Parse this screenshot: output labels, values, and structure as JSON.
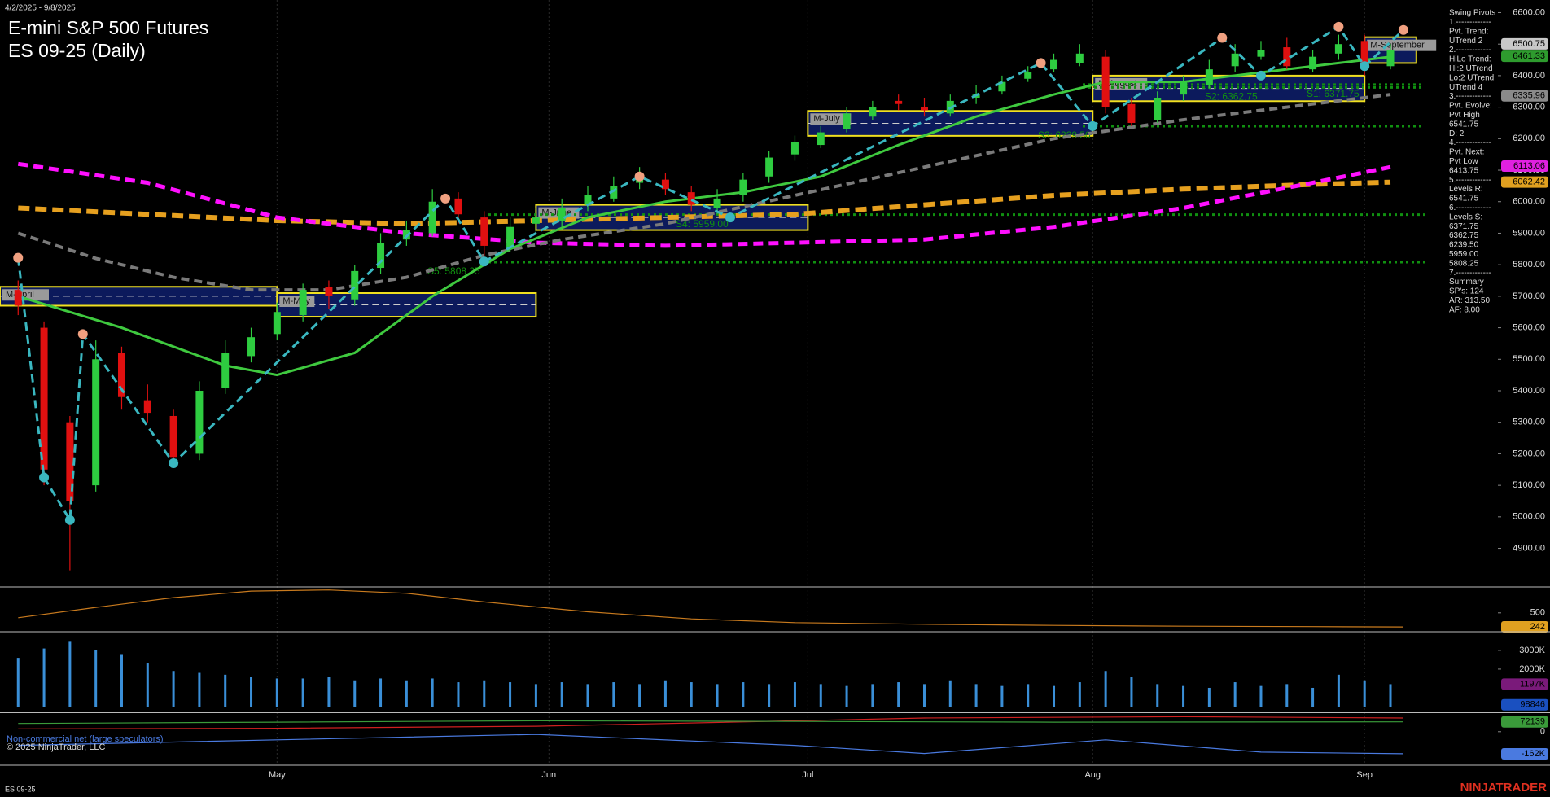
{
  "header": {
    "date_range": "4/2/2025 - 9/8/2025",
    "title": "E-mini S&P 500 Futures",
    "subtitle": "ES 09-25 (Daily)",
    "footer_symbol": "ES 09-25",
    "copyright": "© 2025 NinjaTrader, LLC",
    "brand": "NINJATRADER"
  },
  "sidebar": {
    "lines": [
      "Swing Pivots",
      "1.-------------",
      "Pvt. Trend:",
      "UTrend 2",
      "2.-------------",
      "HiLo Trend:",
      "Hi:2 UTrend",
      "Lo:2 UTrend",
      "UTrend 4",
      "3.-------------",
      "Pvt. Evolve:",
      "Pvt High",
      "6541.75",
      "D: 2",
      "4.-------------",
      "Pvt. Next:",
      "Pvt Low",
      "6413.75",
      "5.-------------",
      "Levels R:",
      "6541.75",
      "6.-------------",
      "Levels S:",
      "6371.75",
      "6362.75",
      "6239.50",
      "5959.00",
      "5808.25",
      "7.-------------",
      "Summary",
      "SP's: 124",
      "AR: 313.50",
      "AF: 8.00"
    ]
  },
  "chart_data": [
    {
      "type": "candlestick",
      "x": [
        0,
        2,
        4,
        6,
        8,
        10,
        12,
        14,
        16,
        18,
        20,
        22,
        24,
        26,
        28,
        30,
        32,
        34,
        36,
        38,
        40,
        42,
        44,
        46,
        48,
        50,
        52,
        54,
        56,
        58,
        60,
        62,
        64,
        66,
        68,
        70,
        72,
        74,
        76,
        78,
        80,
        82,
        84,
        86,
        88,
        90,
        92,
        94,
        96,
        98,
        100,
        102,
        104,
        106
      ],
      "open": [
        5720,
        5600,
        5300,
        5100,
        5520,
        5370,
        5320,
        5200,
        5410,
        5510,
        5580,
        5640,
        5730,
        5690,
        5790,
        5880,
        5900,
        6010,
        5950,
        5850,
        5930,
        5940,
        5990,
        6010,
        6060,
        6070,
        6030,
        5980,
        6020,
        6080,
        6150,
        6180,
        6230,
        6270,
        6320,
        6300,
        6280,
        6330,
        6350,
        6390,
        6420,
        6440,
        6460,
        6310,
        6260,
        6340,
        6370,
        6430,
        6460,
        6490,
        6420,
        6470,
        6510,
        6430
      ],
      "high": [
        5750,
        5620,
        5320,
        5560,
        5540,
        5420,
        5340,
        5430,
        5560,
        5600,
        5680,
        5740,
        5750,
        5800,
        5900,
        5940,
        6040,
        6030,
        5970,
        5950,
        5980,
        6010,
        6050,
        6080,
        6110,
        6090,
        6050,
        6040,
        6090,
        6160,
        6210,
        6240,
        6300,
        6320,
        6340,
        6330,
        6340,
        6370,
        6400,
        6430,
        6470,
        6500,
        6480,
        6330,
        6350,
        6400,
        6450,
        6500,
        6510,
        6520,
        6480,
        6530,
        6530,
        6500
      ],
      "low": [
        5640,
        5100,
        4830,
        5080,
        5340,
        5300,
        5160,
        5180,
        5390,
        5490,
        5560,
        5620,
        5660,
        5670,
        5770,
        5860,
        5890,
        5930,
        5810,
        5840,
        5900,
        5920,
        5970,
        6000,
        6040,
        6020,
        5970,
        5960,
        6000,
        6060,
        6130,
        6170,
        6220,
        6260,
        6290,
        6270,
        6270,
        6310,
        6340,
        6380,
        6410,
        6430,
        6280,
        6240,
        6250,
        6320,
        6360,
        6410,
        6450,
        6420,
        6410,
        6450,
        6400,
        6420
      ],
      "close": [
        5670,
        5150,
        5050,
        5500,
        5380,
        5330,
        5190,
        5400,
        5520,
        5570,
        5650,
        5720,
        5700,
        5780,
        5870,
        5910,
        6000,
        5960,
        5860,
        5920,
        5950,
        5980,
        6020,
        6050,
        6080,
        6040,
        5990,
        6010,
        6070,
        6140,
        6190,
        6220,
        6280,
        6300,
        6310,
        6290,
        6320,
        6340,
        6380,
        6410,
        6450,
        6470,
        6300,
        6250,
        6330,
        6380,
        6420,
        6470,
        6480,
        6430,
        6460,
        6500,
        6420,
        6480
      ],
      "up_color": "#2ecc40",
      "down_color": "#e01010",
      "xlim": [
        -1.4,
        114.3
      ],
      "xticks": [
        {
          "value": 20,
          "label": "May"
        },
        {
          "value": 41,
          "label": "Jun"
        },
        {
          "value": 61,
          "label": "Jul"
        },
        {
          "value": 83,
          "label": "Aug"
        },
        {
          "value": 104,
          "label": "Sep"
        }
      ],
      "ylim": [
        4780,
        6640
      ],
      "yticks": [
        {
          "value": 4900,
          "label": "4900.00"
        },
        {
          "value": 5000,
          "label": "5000.00"
        },
        {
          "value": 5100,
          "label": "5100.00"
        },
        {
          "value": 5200,
          "label": "5200.00"
        },
        {
          "value": 5300,
          "label": "5300.00"
        },
        {
          "value": 5400,
          "label": "5400.00"
        },
        {
          "value": 5500,
          "label": "5500.00"
        },
        {
          "value": 5600,
          "label": "5600.00"
        },
        {
          "value": 5700,
          "label": "5700.00"
        },
        {
          "value": 5800,
          "label": "5800.00"
        },
        {
          "value": 5900,
          "label": "5900.00"
        },
        {
          "value": 6000,
          "label": "6000.00"
        },
        {
          "value": 6100,
          "label": "6100.00"
        },
        {
          "value": 6200,
          "label": "6200.00"
        },
        {
          "value": 6300,
          "label": "6300.00"
        },
        {
          "value": 6400,
          "label": "6400.00"
        },
        {
          "value": 6500,
          "label": "6500.00"
        },
        {
          "value": 6600,
          "label": "6600.00"
        }
      ],
      "series": [
        {
          "color": "#e6a01f",
          "width": 6,
          "dash": "14 7",
          "x": [
            0,
            10,
            20,
            30,
            40,
            50,
            60,
            70,
            80,
            90,
            100,
            106
          ],
          "values": [
            5980,
            5960,
            5940,
            5930,
            5940,
            5950,
            5960,
            5990,
            6020,
            6040,
            6055,
            6062
          ]
        },
        {
          "color": "#ff10ff",
          "width": 5,
          "dash": "12 7",
          "x": [
            0,
            10,
            20,
            30,
            40,
            50,
            60,
            70,
            80,
            90,
            100,
            106
          ],
          "values": [
            6120,
            6060,
            5950,
            5900,
            5870,
            5860,
            5870,
            5880,
            5920,
            5980,
            6060,
            6110
          ]
        },
        {
          "color": "#7a7a7a",
          "width": 4,
          "dash": "10 6",
          "x": [
            0,
            6,
            12,
            18,
            24,
            30,
            36,
            42,
            50,
            60,
            70,
            80,
            90,
            100,
            106
          ],
          "values": [
            5900,
            5820,
            5760,
            5720,
            5720,
            5760,
            5830,
            5880,
            5930,
            6020,
            6110,
            6200,
            6260,
            6310,
            6340
          ]
        },
        {
          "color": "#3fc93f",
          "width": 3,
          "dash": "",
          "x": [
            0,
            8,
            16,
            20,
            26,
            32,
            38,
            44,
            50,
            56,
            62,
            68,
            74,
            80,
            84,
            90,
            96,
            102,
            106
          ],
          "values": [
            5700,
            5600,
            5480,
            5450,
            5520,
            5700,
            5850,
            5950,
            6000,
            6030,
            6080,
            6180,
            6270,
            6340,
            6380,
            6380,
            6410,
            6440,
            6460
          ]
        }
      ],
      "swing": {
        "color": "#3ab7c0",
        "high_color": "#f0a080",
        "x": [
          0,
          2,
          4,
          5,
          12,
          33,
          36,
          48,
          55,
          79,
          83,
          93,
          96,
          102,
          104,
          107
        ],
        "values": [
          5822,
          5125,
          4990,
          5580,
          5170,
          6010,
          5810,
          6080,
          5950,
          6440,
          6240,
          6520,
          6400,
          6555,
          6430,
          6545
        ]
      },
      "levels": [
        {
          "value": 6371.75,
          "label": "S1: 6371.75"
        },
        {
          "value": 6362.75,
          "label": "S2: 6362.75"
        },
        {
          "value": 6239.5,
          "label": "S3: 6239.50"
        },
        {
          "value": 5959,
          "label": "S4: 5959.00"
        },
        {
          "value": 5808.25,
          "label": "S5: 5808.25"
        }
      ],
      "level_color": "#109010",
      "ranges": [
        {
          "name": "M-April",
          "x": [
            -1.4,
            20
          ],
          "lo": 5670,
          "hi": 5730
        },
        {
          "name": "M-May",
          "x": [
            20,
            40
          ],
          "lo": 5635,
          "hi": 5710
        },
        {
          "name": "M-June",
          "x": [
            40,
            61
          ],
          "lo": 5910,
          "hi": 5990
        },
        {
          "name": "M-July",
          "x": [
            61,
            83
          ],
          "lo": 6209,
          "hi": 6288
        },
        {
          "name": "M-August",
          "x": [
            83,
            104
          ],
          "lo": 6319,
          "hi": 6400
        },
        {
          "name": "M-September",
          "x": [
            104,
            108
          ],
          "lo": 6440,
          "hi": 6522
        }
      ],
      "badges": [
        {
          "value": 6500.75,
          "color": "#c8c8c8"
        },
        {
          "value": 6461.33,
          "color": "#2e9b2e"
        },
        {
          "value": 6335.96,
          "color": "#8a8a8a"
        },
        {
          "value": 6113.06,
          "color": "#e020e0"
        },
        {
          "value": 6062.42,
          "color": "#e0a020"
        }
      ]
    },
    {
      "type": "line",
      "xlim": [
        -1.4,
        114.3
      ],
      "ylim": [
        168,
        961
      ],
      "yticks": [
        500
      ],
      "series": [
        {
          "color": "#c87a1e",
          "width": 1.2,
          "dash": "",
          "x": [
            0,
            6,
            12,
            18,
            24,
            30,
            36,
            44,
            52,
            60,
            70,
            80,
            90,
            100,
            107
          ],
          "values": [
            410,
            600,
            780,
            900,
            920,
            860,
            700,
            520,
            390,
            320,
            290,
            270,
            255,
            248,
            242
          ]
        }
      ],
      "badges": [
        {
          "value": 242,
          "color": "#e0a020"
        }
      ]
    },
    {
      "type": "bar",
      "color": "#3a8fd8",
      "xlim": [
        -1.4,
        114.3
      ],
      "ylim": [
        -260000,
        3950000
      ],
      "yticks": [
        {
          "value": 2000000,
          "label": "2000K"
        },
        {
          "value": 3000000,
          "label": "3000K"
        }
      ],
      "x": [
        0,
        2,
        4,
        6,
        8,
        10,
        12,
        14,
        16,
        18,
        20,
        22,
        24,
        26,
        28,
        30,
        32,
        34,
        36,
        38,
        40,
        42,
        44,
        46,
        48,
        50,
        52,
        54,
        56,
        58,
        60,
        62,
        64,
        66,
        68,
        70,
        72,
        74,
        76,
        78,
        80,
        82,
        84,
        86,
        88,
        90,
        92,
        94,
        96,
        98,
        100,
        102,
        104,
        106
      ],
      "values": [
        2600000,
        3100000,
        3500000,
        3000000,
        2800000,
        2300000,
        1900000,
        1800000,
        1700000,
        1600000,
        1500000,
        1500000,
        1600000,
        1400000,
        1500000,
        1400000,
        1500000,
        1300000,
        1400000,
        1300000,
        1200000,
        1300000,
        1200000,
        1300000,
        1200000,
        1400000,
        1300000,
        1200000,
        1300000,
        1200000,
        1300000,
        1200000,
        1100000,
        1200000,
        1300000,
        1200000,
        1400000,
        1200000,
        1100000,
        1200000,
        1100000,
        1300000,
        1900000,
        1600000,
        1200000,
        1100000,
        1000000,
        1300000,
        1100000,
        1200000,
        1000000,
        1700000,
        1400000,
        1197000
      ],
      "badges": [
        {
          "value": 1197000,
          "label": "1197K",
          "color": "#7a1a7a"
        },
        {
          "value": 98846,
          "color": "#1a50c0"
        }
      ]
    },
    {
      "type": "line",
      "label": "Non-commercial net (large speculators)",
      "xlim": [
        -1.4,
        114.3
      ],
      "ylim": [
        -216000,
        130000
      ],
      "yticks": [
        0
      ],
      "series": [
        {
          "color": "#d02020",
          "width": 1.2,
          "dash": "",
          "x": [
            0,
            20,
            40,
            60,
            70,
            90,
            107
          ],
          "values": [
            20000,
            25000,
            40000,
            80000,
            100000,
            110000,
            100000
          ]
        },
        {
          "color": "#3a9a3a",
          "width": 1.2,
          "dash": "",
          "x": [
            0,
            20,
            40,
            60,
            80,
            107
          ],
          "values": [
            60000,
            70000,
            80000,
            75000,
            70000,
            72139
          ]
        },
        {
          "color": "#4a7ae0",
          "width": 1.2,
          "dash": "",
          "x": [
            0,
            20,
            40,
            60,
            70,
            84,
            96,
            107
          ],
          "values": [
            -100000,
            -60000,
            -20000,
            -100000,
            -160000,
            -60000,
            -150000,
            -162000
          ]
        }
      ],
      "badges": [
        {
          "value": 72139,
          "color": "#3a9a3a"
        },
        {
          "value": -162000,
          "label": "-162K",
          "color": "#4a7ae0"
        }
      ]
    }
  ]
}
